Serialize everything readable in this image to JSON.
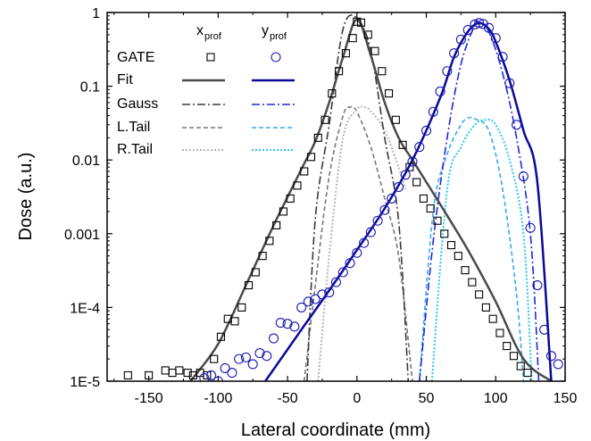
{
  "chart_data": {
    "type": "line",
    "xlabel": "Lateral coordinate (mm)",
    "ylabel": "Dose (a.u.)",
    "xlim": [
      -180,
      150
    ],
    "ylim": [
      1e-05,
      1
    ],
    "yscale": "log",
    "x_ticks": [
      -150,
      -100,
      -50,
      0,
      50,
      100,
      150
    ],
    "x_tick_labels": [
      "-150",
      "-100",
      "-50",
      "0",
      "50",
      "100",
      "150"
    ],
    "y_ticks": [
      1e-05,
      0.0001,
      0.001,
      0.01,
      0.1,
      1
    ],
    "y_tick_labels": [
      "1E-5",
      "1E-4",
      "0.001",
      "0.01",
      "0.1",
      "1"
    ],
    "legend": {
      "position": "top-left",
      "column_headers": [
        {
          "main": "x",
          "sub": "prof"
        },
        {
          "main": "y",
          "sub": "prof"
        }
      ],
      "rows": [
        "GATE",
        "Fit",
        "Gauss",
        "L.Tail",
        "R.Tail"
      ]
    },
    "colors": {
      "x_marker": "#000000",
      "x_fit": "#4a4a4a",
      "x_gauss": "#3a3a3a",
      "x_ltail": "#777777",
      "x_rtail": "#b5b5b5",
      "y_marker": "#1a1ab0",
      "y_fit": "#0a0a9a",
      "y_gauss": "#1a2ad8",
      "y_ltail": "#3aa8ee",
      "y_rtail": "#28c8ee"
    },
    "series": [
      {
        "id": "x_gate",
        "kind": "marker",
        "marker": "square",
        "x": [
          -165,
          -150,
          -138,
          -133,
          -128,
          -122,
          -118,
          -113,
          -108,
          -103,
          -98,
          -93,
          -88,
          -83,
          -78,
          -73,
          -68,
          -63,
          -58,
          -53,
          -48,
          -43,
          -38,
          -33,
          -28,
          -23,
          -18,
          -13,
          -8,
          -3,
          0,
          3,
          8,
          13,
          18,
          23,
          28,
          33,
          38,
          43,
          48,
          53,
          58,
          63,
          68,
          73,
          78,
          83,
          88,
          93,
          98,
          103,
          108,
          113,
          118,
          123
        ],
        "y": [
          1.2e-05,
          1.2e-05,
          1.4e-05,
          1.3e-05,
          1.4e-05,
          1.3e-05,
          1.2e-05,
          1.3e-05,
          1.2e-05,
          2e-05,
          4e-05,
          7e-05,
          6.5e-05,
          0.0001,
          0.0002,
          0.0003,
          0.0005,
          0.0008,
          0.0013,
          0.002,
          0.003,
          0.0045,
          0.007,
          0.011,
          0.02,
          0.035,
          0.08,
          0.16,
          0.28,
          0.45,
          0.75,
          0.73,
          0.5,
          0.3,
          0.16,
          0.08,
          0.035,
          0.016,
          0.008,
          0.005,
          0.003,
          0.0022,
          0.0015,
          0.001,
          0.0007,
          0.0005,
          0.00032,
          0.00022,
          0.00015,
          0.0001,
          7e-05,
          4.5e-05,
          3e-05,
          2.2e-05,
          1.6e-05,
          1.3e-05
        ]
      },
      {
        "id": "y_gate",
        "kind": "marker",
        "marker": "circle",
        "x": [
          -110,
          -105,
          -100,
          -95,
          -90,
          -85,
          -80,
          -75,
          -70,
          -65,
          -60,
          -55,
          -50,
          -45,
          -40,
          -35,
          -30,
          -25,
          -20,
          -15,
          -10,
          -5,
          0,
          5,
          10,
          15,
          20,
          25,
          30,
          35,
          40,
          45,
          50,
          55,
          60,
          65,
          70,
          75,
          80,
          85,
          88,
          91,
          95,
          100,
          105,
          110,
          115,
          120,
          125,
          130,
          135,
          140,
          145
        ],
        "y": [
          1.1e-05,
          1.2e-05,
          1e-05,
          1.5e-05,
          1.3e-05,
          2e-05,
          2.1e-05,
          1.7e-05,
          2.4e-05,
          2.2e-05,
          3.8e-05,
          6.2e-05,
          6e-05,
          5.5e-05,
          0.0001,
          0.00012,
          0.00013,
          0.00015,
          0.00016,
          0.00022,
          0.0003,
          0.0004,
          0.00055,
          0.00075,
          0.00105,
          0.0015,
          0.0021,
          0.003,
          0.0043,
          0.0063,
          0.0095,
          0.015,
          0.025,
          0.045,
          0.085,
          0.16,
          0.28,
          0.43,
          0.58,
          0.69,
          0.72,
          0.7,
          0.62,
          0.45,
          0.25,
          0.11,
          0.03,
          0.006,
          0.0012,
          0.0002,
          5e-05,
          2.2e-05,
          1.7e-05
        ]
      },
      {
        "id": "x_fit",
        "kind": "line",
        "x": [
          -120,
          -100,
          -80,
          -60,
          -40,
          -30,
          -20,
          -10,
          0,
          10,
          20,
          30,
          40,
          60,
          80,
          100,
          120,
          140
        ],
        "y": [
          1e-05,
          3.2e-05,
          0.0002,
          0.0013,
          0.0075,
          0.018,
          0.06,
          0.25,
          0.8,
          0.26,
          0.06,
          0.02,
          0.01,
          0.0025,
          0.0006,
          0.00012,
          2e-05,
          1e-05
        ]
      },
      {
        "id": "x_gauss",
        "kind": "line",
        "x": [
          -36,
          -30,
          -20,
          -10,
          0,
          10,
          20,
          30,
          37
        ],
        "y": [
          1e-05,
          0.0016,
          0.03,
          0.6,
          0.84,
          0.3,
          0.02,
          0.0015,
          1e-05
        ]
      },
      {
        "id": "x_ltail",
        "kind": "line",
        "x": [
          -38,
          -30,
          -20,
          -10,
          -5,
          0,
          10,
          20,
          30,
          40
        ],
        "y": [
          1e-05,
          0.0002,
          0.006,
          0.04,
          0.052,
          0.045,
          0.015,
          0.003,
          0.0005,
          1e-05
        ]
      },
      {
        "id": "x_rtail",
        "kind": "line",
        "x": [
          -28,
          -20,
          -10,
          0,
          5,
          10,
          20,
          30,
          35
        ],
        "y": [
          1e-05,
          0.0005,
          0.02,
          0.048,
          0.052,
          0.046,
          0.025,
          0.008,
          0.004
        ]
      },
      {
        "id": "y_fit",
        "kind": "line",
        "x": [
          -66,
          -40,
          -20,
          0,
          20,
          40,
          60,
          70,
          80,
          88,
          95,
          100,
          110,
          120,
          130,
          140
        ],
        "y": [
          1e-05,
          5e-05,
          0.00017,
          0.0006,
          0.0022,
          0.01,
          0.07,
          0.25,
          0.55,
          0.72,
          0.6,
          0.4,
          0.12,
          0.025,
          0.005,
          1e-05
        ]
      },
      {
        "id": "y_gauss",
        "kind": "line",
        "x": [
          45,
          55,
          65,
          75,
          85,
          88,
          95,
          105,
          115,
          125,
          131
        ],
        "y": [
          1e-05,
          0.0008,
          0.02,
          0.2,
          0.68,
          0.72,
          0.55,
          0.15,
          0.02,
          0.001,
          1e-05
        ]
      },
      {
        "id": "y_ltail",
        "kind": "line",
        "x": [
          45,
          55,
          65,
          75,
          80,
          85,
          95,
          105,
          115,
          120
        ],
        "y": [
          1e-05,
          0.002,
          0.012,
          0.03,
          0.037,
          0.036,
          0.025,
          0.004,
          0.00015,
          1e-05
        ]
      },
      {
        "id": "y_rtail",
        "kind": "line",
        "x": [
          54,
          65,
          75,
          85,
          93,
          100,
          110,
          120,
          126
        ],
        "y": [
          1e-05,
          0.004,
          0.015,
          0.03,
          0.035,
          0.03,
          0.01,
          0.001,
          1e-05
        ]
      }
    ]
  }
}
